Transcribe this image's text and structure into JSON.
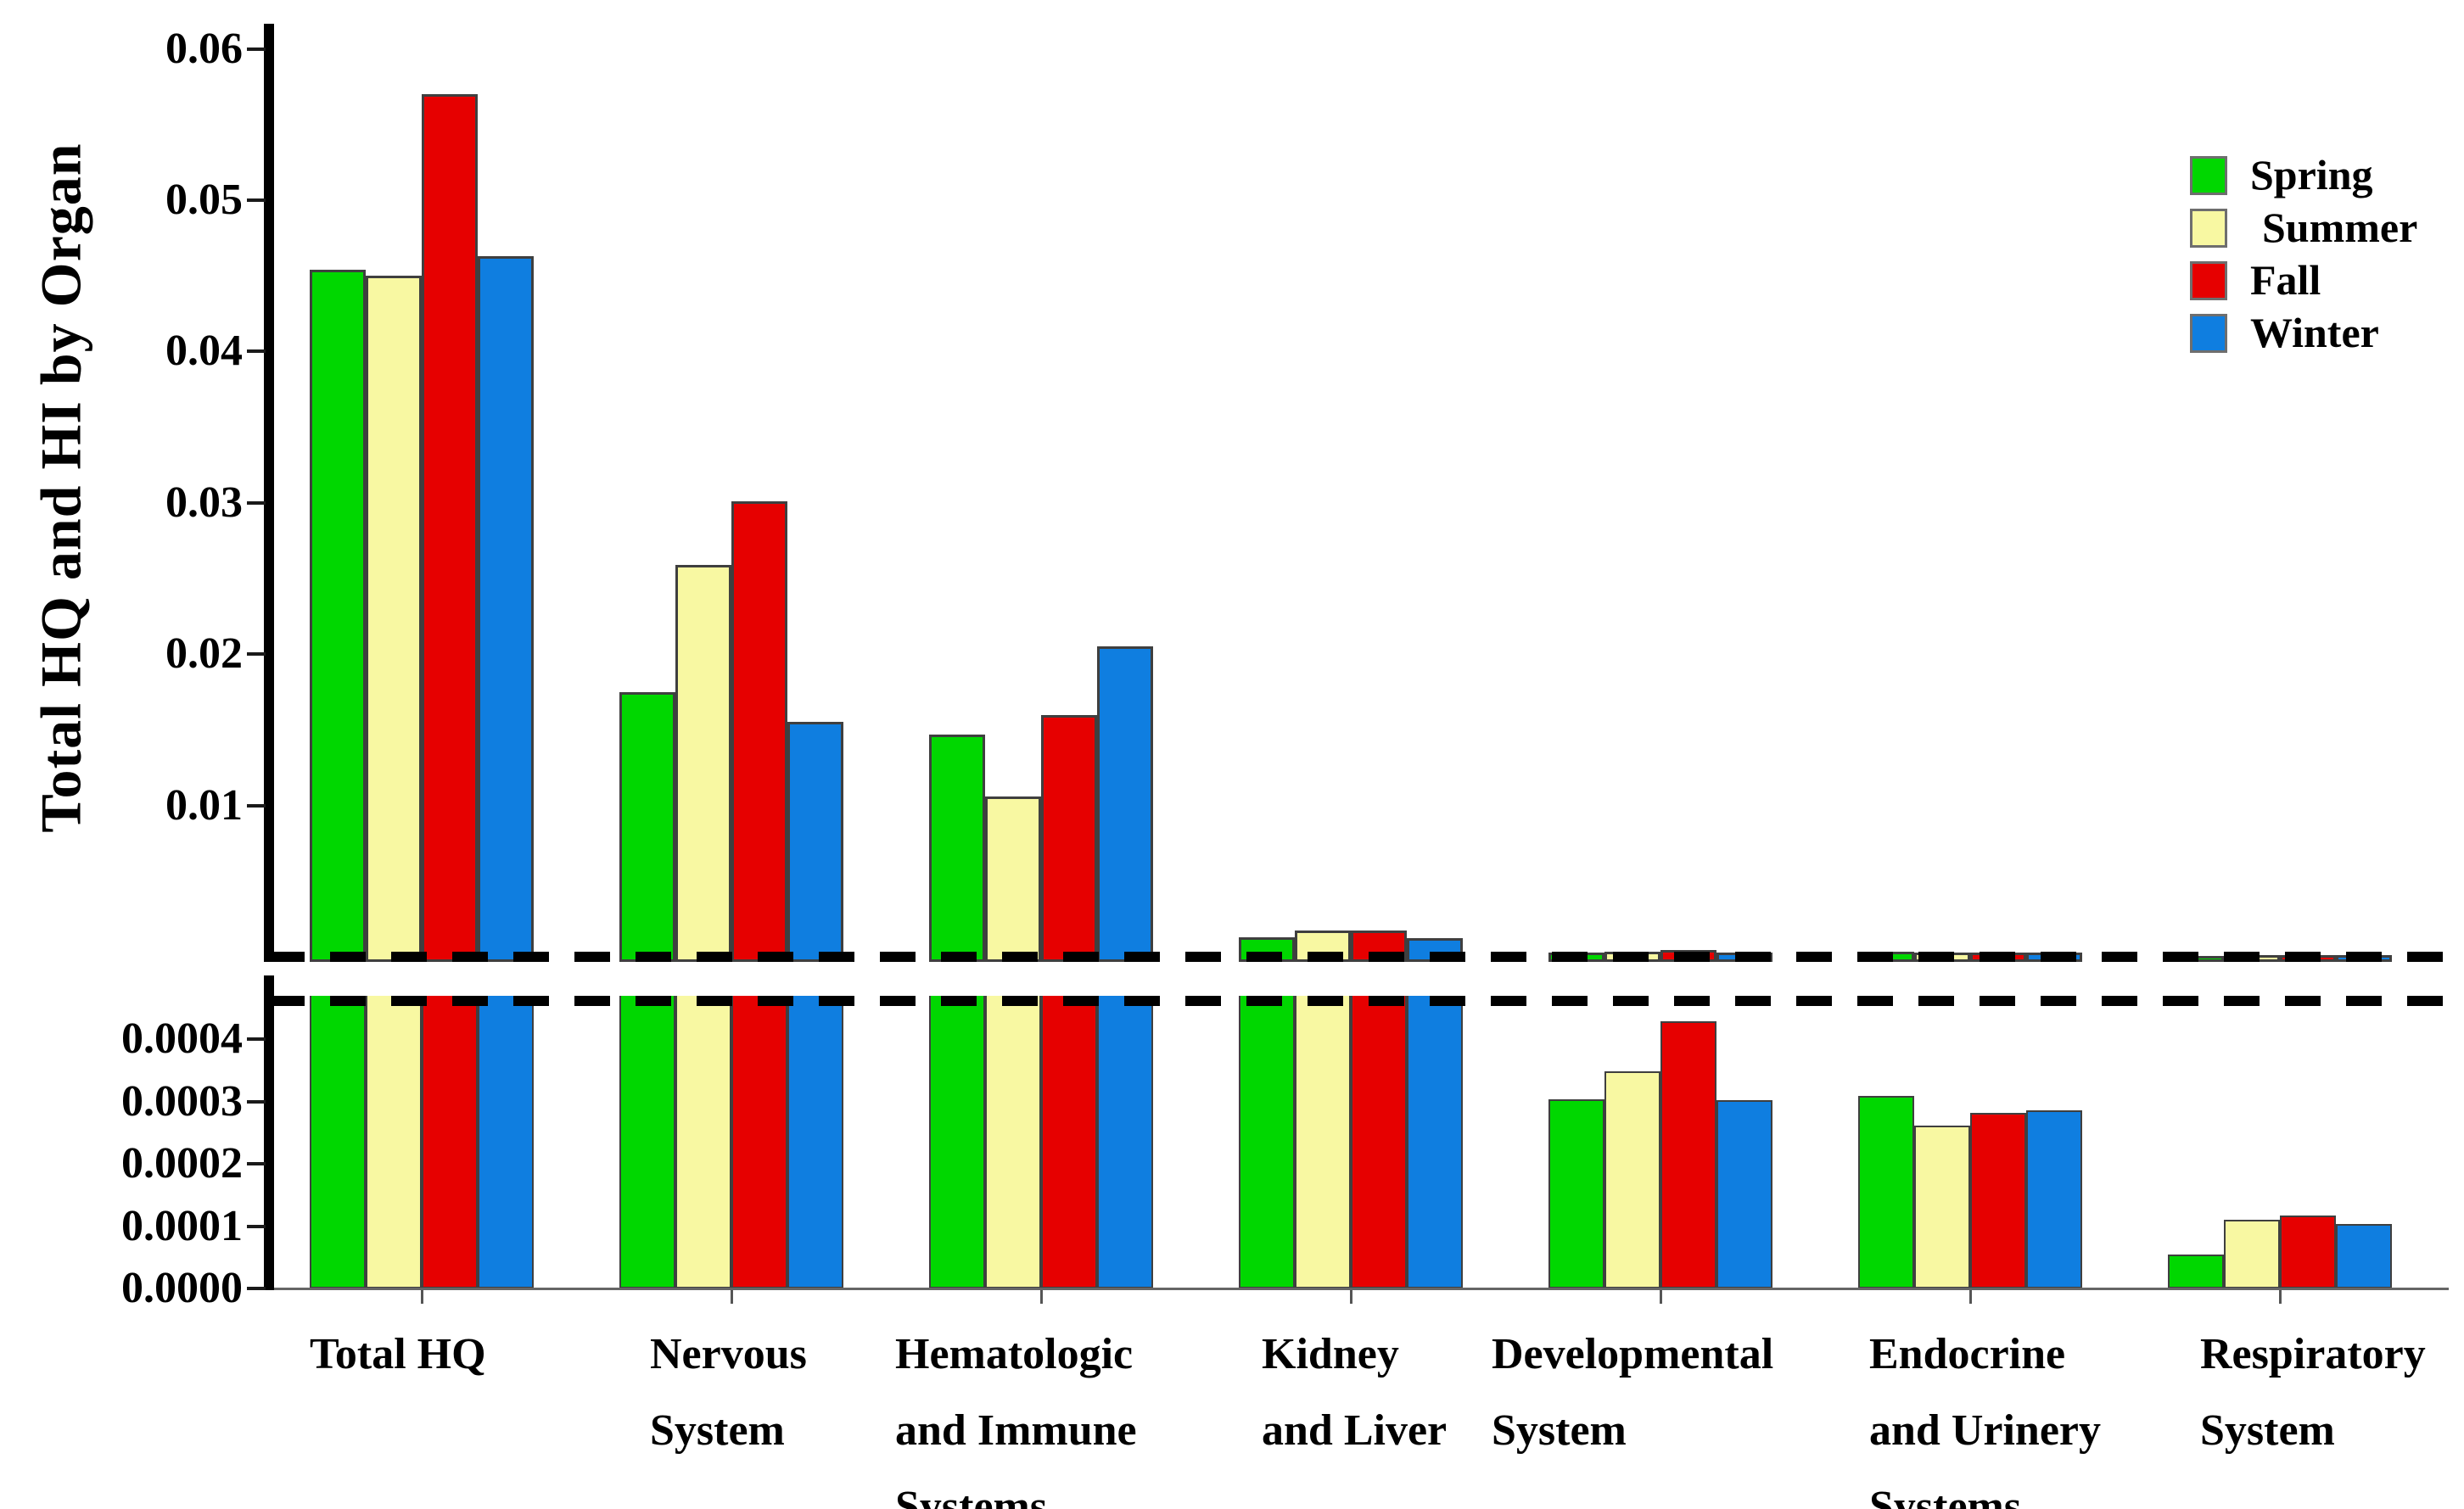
{
  "chart_data": {
    "type": "bar",
    "title": "",
    "ylabel": "Total HQ and HI by Organ",
    "xlabel": "",
    "grid": false,
    "legend_position": "top-right",
    "axis_break": true,
    "categories": [
      "Total HQ",
      "Nervous System",
      "Hematologic and Immune Systems",
      "Kidney and Liver",
      "Developmental System",
      "Endocrine and Urinery Systems",
      "Respiratory System"
    ],
    "category_lines": [
      [
        "Total HQ"
      ],
      [
        "Nervous",
        "System"
      ],
      [
        "Hematologic",
        "and Immune",
        "Systems"
      ],
      [
        "Kidney",
        "and Liver"
      ],
      [
        "Developmental",
        "System"
      ],
      [
        "Endocrine",
        "and Urinery",
        "Systems"
      ],
      [
        "Respiratory",
        "System"
      ]
    ],
    "series": [
      {
        "name": "Spring",
        "color": "#00D700",
        "values": [
          0.0454,
          0.0175,
          0.0147,
          0.0013,
          0.000303,
          0.000309,
          5.5e-05
        ]
      },
      {
        "name": "Summer",
        "color": "#F8F8A2",
        "values": [
          0.045,
          0.0259,
          0.0106,
          0.00175,
          0.000348,
          0.000261,
          0.00011
        ]
      },
      {
        "name": "Fall",
        "color": "#E60000",
        "values": [
          0.057,
          0.0301,
          0.016,
          0.00172,
          0.000429,
          0.000282,
          0.000117
        ]
      },
      {
        "name": "Winter",
        "color": "#0F7EE0",
        "values": [
          0.0463,
          0.0155,
          0.0205,
          0.00125,
          0.000302,
          0.000286,
          0.000103
        ]
      }
    ],
    "top_axis": {
      "ylim": [
        0,
        0.0615
      ],
      "ticks": [
        0.06,
        0.05,
        0.04,
        0.03,
        0.02,
        0.01
      ],
      "tick_labels": [
        "0.06",
        "0.05",
        "0.04",
        "0.03",
        "0.02",
        "0.01"
      ]
    },
    "bottom_axis": {
      "ylim": [
        0,
        0.00046
      ],
      "ticks": [
        0.0004,
        0.0003,
        0.0002,
        0.0001,
        0.0
      ],
      "tick_labels": [
        "0.0004",
        "0.0003",
        "0.0002",
        "0.0001",
        "0.0000"
      ]
    }
  }
}
